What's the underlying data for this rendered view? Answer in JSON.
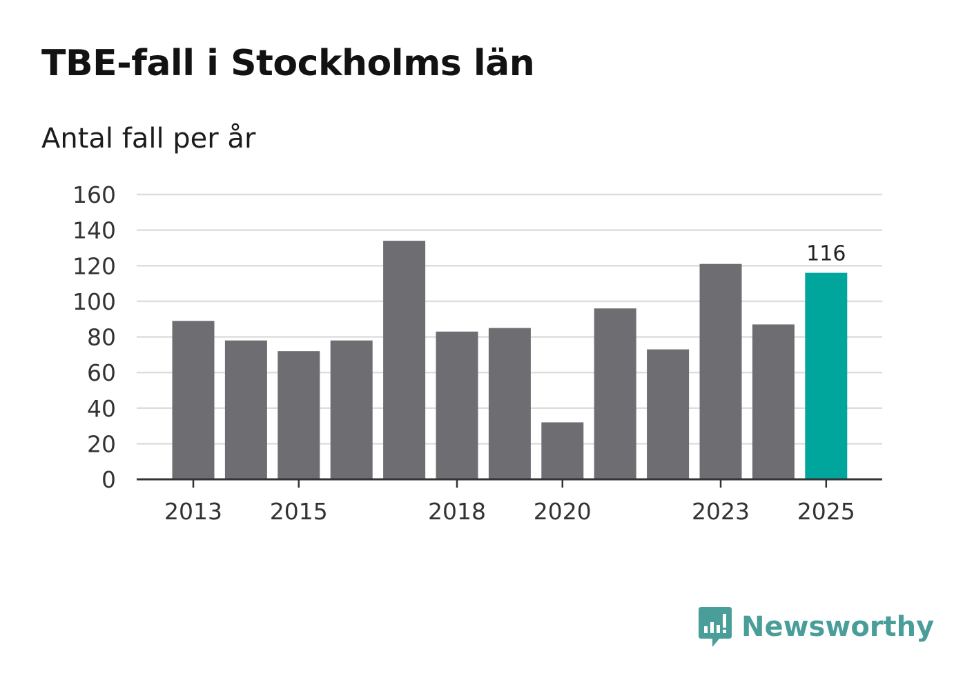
{
  "title": "TBE-fall i Stockholms län",
  "subtitle": "Antal fall per år",
  "brand": {
    "name": "Newsworthy",
    "color": "#4a9e9a"
  },
  "colors": {
    "bar": "#6e6d72",
    "highlight": "#00a59b",
    "grid": "#dddddd",
    "axis": "#333333"
  },
  "chart_data": {
    "type": "bar",
    "title": "TBE-fall i Stockholms län",
    "subtitle": "Antal fall per år",
    "xlabel": "",
    "ylabel": "",
    "categories": [
      "2013",
      "2014",
      "2015",
      "2016",
      "2017",
      "2018",
      "2019",
      "2020",
      "2021",
      "2022",
      "2023",
      "2024",
      "2025"
    ],
    "x_tick_labels": [
      "2013",
      "",
      "2015",
      "",
      "",
      "2018",
      "",
      "2020",
      "",
      "",
      "2023",
      "",
      "2025"
    ],
    "values": [
      89,
      78,
      72,
      78,
      134,
      83,
      85,
      32,
      96,
      73,
      121,
      87,
      116
    ],
    "highlight_index": 12,
    "data_labels": [
      null,
      null,
      null,
      null,
      null,
      null,
      null,
      null,
      null,
      null,
      null,
      null,
      "116"
    ],
    "ylim": [
      0,
      160
    ],
    "yticks": [
      0,
      20,
      40,
      60,
      80,
      100,
      120,
      140,
      160
    ],
    "grid": true
  }
}
